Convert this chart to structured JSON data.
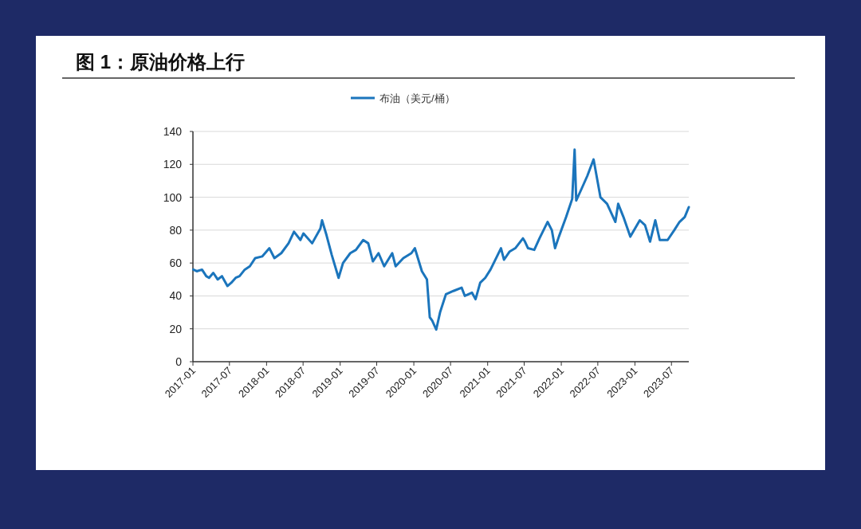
{
  "chart_data": {
    "type": "line",
    "title": "图 1：原油价格上行",
    "x": [
      "2017-01-03",
      "2017-01-20",
      "2017-02-15",
      "2017-03-08",
      "2017-03-22",
      "2017-04-12",
      "2017-05-04",
      "2017-05-25",
      "2017-06-21",
      "2017-07-10",
      "2017-08-01",
      "2017-08-20",
      "2017-09-15",
      "2017-10-10",
      "2017-11-06",
      "2017-12-10",
      "2018-01-15",
      "2018-02-09",
      "2018-03-15",
      "2018-04-20",
      "2018-05-17",
      "2018-06-18",
      "2018-07-03",
      "2018-08-15",
      "2018-09-25",
      "2018-10-03",
      "2018-10-25",
      "2018-11-20",
      "2018-12-24",
      "2019-01-15",
      "2019-02-20",
      "2019-03-20",
      "2019-04-25",
      "2019-05-20",
      "2019-06-12",
      "2019-07-10",
      "2019-08-07",
      "2019-09-16",
      "2019-10-03",
      "2019-11-10",
      "2019-12-20",
      "2020-01-06",
      "2020-02-10",
      "2020-03-06",
      "2020-03-20",
      "2020-04-01",
      "2020-04-21",
      "2020-05-10",
      "2020-06-08",
      "2020-07-15",
      "2020-08-25",
      "2020-09-10",
      "2020-10-15",
      "2020-11-02",
      "2020-11-25",
      "2020-12-20",
      "2021-01-15",
      "2021-02-20",
      "2021-03-08",
      "2021-03-23",
      "2021-04-20",
      "2021-05-18",
      "2021-06-25",
      "2021-07-05",
      "2021-07-20",
      "2021-08-20",
      "2021-09-15",
      "2021-10-25",
      "2021-11-15",
      "2021-12-01",
      "2021-12-20",
      "2022-01-25",
      "2022-02-24",
      "2022-03-08",
      "2022-03-16",
      "2022-04-11",
      "2022-05-10",
      "2022-06-10",
      "2022-07-14",
      "2022-08-16",
      "2022-09-26",
      "2022-10-10",
      "2022-11-05",
      "2022-12-09",
      "2023-01-25",
      "2023-02-20",
      "2023-03-17",
      "2023-04-12",
      "2023-05-04",
      "2023-06-12",
      "2023-07-15",
      "2023-08-10",
      "2023-09-05",
      "2023-09-25"
    ],
    "series": [
      {
        "name": "布油（美元/桶）",
        "color": "#1b75bc",
        "values": [
          56,
          55,
          56,
          52,
          51,
          54,
          50,
          52,
          46,
          48,
          51,
          52,
          56,
          58,
          63,
          64,
          69,
          63,
          66,
          72,
          79,
          74,
          78,
          72,
          81,
          86,
          77,
          65,
          51,
          60,
          66,
          68,
          74,
          72,
          61,
          66,
          58,
          66,
          58,
          63,
          66,
          69,
          55,
          50,
          27,
          25,
          19.5,
          30,
          41,
          43,
          45,
          40,
          42,
          38,
          48,
          51,
          56,
          65,
          69,
          62,
          67,
          69,
          75,
          73,
          69,
          68,
          75,
          85,
          80,
          69,
          76,
          88,
          99,
          129,
          98,
          105,
          113,
          123,
          100,
          96,
          85,
          96,
          88,
          76,
          86,
          83,
          73,
          86,
          74,
          74,
          80,
          85,
          88,
          94
        ]
      }
    ],
    "xlim": [
      "2017-01-01",
      "2023-09-25"
    ],
    "xticks": [
      {
        "value": "2017-01-01",
        "label": "2017-01"
      },
      {
        "value": "2017-07-01",
        "label": "2017-07"
      },
      {
        "value": "2018-01-01",
        "label": "2018-01"
      },
      {
        "value": "2018-07-01",
        "label": "2018-07"
      },
      {
        "value": "2019-01-01",
        "label": "2019-01"
      },
      {
        "value": "2019-07-01",
        "label": "2019-07"
      },
      {
        "value": "2020-01-01",
        "label": "2020-01"
      },
      {
        "value": "2020-07-01",
        "label": "2020-07"
      },
      {
        "value": "2021-01-01",
        "label": "2021-01"
      },
      {
        "value": "2021-07-01",
        "label": "2021-07"
      },
      {
        "value": "2022-01-01",
        "label": "2022-01"
      },
      {
        "value": "2022-07-01",
        "label": "2022-07"
      },
      {
        "value": "2023-01-01",
        "label": "2023-01"
      },
      {
        "value": "2023-07-01",
        "label": "2023-07"
      }
    ],
    "ylim": [
      0,
      140
    ],
    "yticks": [
      0,
      20,
      40,
      60,
      80,
      100,
      120,
      140
    ],
    "grid": "y",
    "legend": "top"
  }
}
